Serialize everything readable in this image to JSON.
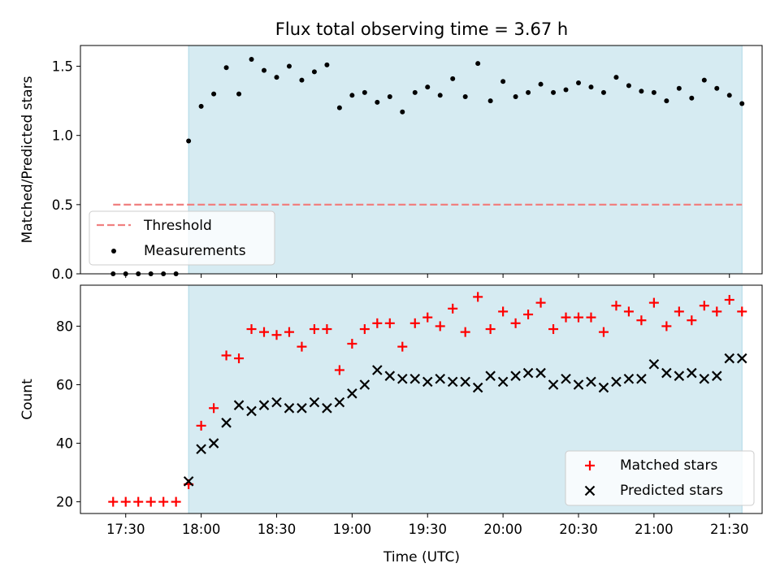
{
  "title": "Flux total observing time = 3.67 h",
  "xlabel": "Time (UTC)",
  "xticks": [
    "17:30",
    "18:00",
    "18:30",
    "19:00",
    "19:30",
    "20:00",
    "20:30",
    "21:00",
    "21:30"
  ],
  "colors": {
    "shade": "#add8e6",
    "threshold": "#f08080",
    "matched": "#ff0000",
    "predicted": "#000000"
  },
  "chart_data": [
    {
      "type": "scatter",
      "ylabel": "Matched/Predicted stars",
      "ylim": [
        0,
        1.65
      ],
      "yticks": [
        "0.0",
        "0.5",
        "1.0",
        "1.5"
      ],
      "shaded_region": [
        "17:55",
        "21:35"
      ],
      "threshold": {
        "name": "Threshold",
        "value": 0.5,
        "x_range": [
          "17:25",
          "21:35"
        ]
      },
      "legend": [
        "Threshold",
        "Measurements"
      ],
      "legend_position": "lower-left",
      "series": [
        {
          "name": "Measurements",
          "x": [
            "17:25",
            "17:30",
            "17:35",
            "17:40",
            "17:45",
            "17:50",
            "17:55",
            "18:00",
            "18:05",
            "18:10",
            "18:15",
            "18:20",
            "18:25",
            "18:30",
            "18:35",
            "18:40",
            "18:45",
            "18:50",
            "18:55",
            "19:00",
            "19:05",
            "19:10",
            "19:15",
            "19:20",
            "19:25",
            "19:30",
            "19:35",
            "19:40",
            "19:45",
            "19:50",
            "19:55",
            "20:00",
            "20:05",
            "20:10",
            "20:15",
            "20:20",
            "20:25",
            "20:30",
            "20:35",
            "20:40",
            "20:45",
            "20:50",
            "20:55",
            "21:00",
            "21:05",
            "21:10",
            "21:15",
            "21:20",
            "21:25",
            "21:30",
            "21:35"
          ],
          "values": [
            0,
            0,
            0,
            0,
            0,
            0,
            0.96,
            1.21,
            1.3,
            1.49,
            1.3,
            1.55,
            1.47,
            1.42,
            1.5,
            1.4,
            1.46,
            1.51,
            1.2,
            1.29,
            1.31,
            1.24,
            1.28,
            1.17,
            1.31,
            1.35,
            1.29,
            1.41,
            1.28,
            1.52,
            1.25,
            1.39,
            1.28,
            1.31,
            1.37,
            1.31,
            1.33,
            1.38,
            1.35,
            1.31,
            1.42,
            1.36,
            1.32,
            1.31,
            1.25,
            1.34,
            1.27,
            1.4,
            1.34,
            1.29,
            1.23
          ]
        }
      ]
    },
    {
      "type": "scatter",
      "ylabel": "Count",
      "ylim": [
        16,
        94
      ],
      "yticks": [
        "20",
        "40",
        "60",
        "80"
      ],
      "shaded_region": [
        "17:55",
        "21:35"
      ],
      "legend": [
        "Matched stars",
        "Predicted stars"
      ],
      "legend_position": "lower-right",
      "series": [
        {
          "name": "Matched stars",
          "marker": "plus",
          "x": [
            "17:25",
            "17:30",
            "17:35",
            "17:40",
            "17:45",
            "17:50",
            "17:55",
            "18:00",
            "18:05",
            "18:10",
            "18:15",
            "18:20",
            "18:25",
            "18:30",
            "18:35",
            "18:40",
            "18:45",
            "18:50",
            "18:55",
            "19:00",
            "19:05",
            "19:10",
            "19:15",
            "19:20",
            "19:25",
            "19:30",
            "19:35",
            "19:40",
            "19:45",
            "19:50",
            "19:55",
            "20:00",
            "20:05",
            "20:10",
            "20:15",
            "20:20",
            "20:25",
            "20:30",
            "20:35",
            "20:40",
            "20:45",
            "20:50",
            "20:55",
            "21:00",
            "21:05",
            "21:10",
            "21:15",
            "21:20",
            "21:25",
            "21:30",
            "21:35"
          ],
          "values": [
            20,
            20,
            20,
            20,
            20,
            20,
            26,
            46,
            52,
            70,
            69,
            79,
            78,
            77,
            78,
            73,
            79,
            79,
            65,
            74,
            79,
            81,
            81,
            73,
            81,
            83,
            80,
            86,
            78,
            90,
            79,
            85,
            81,
            84,
            88,
            79,
            83,
            83,
            83,
            78,
            87,
            85,
            82,
            88,
            80,
            85,
            82,
            87,
            85,
            89,
            85
          ]
        },
        {
          "name": "Predicted stars",
          "marker": "x",
          "x": [
            "17:55",
            "18:00",
            "18:05",
            "18:10",
            "18:15",
            "18:20",
            "18:25",
            "18:30",
            "18:35",
            "18:40",
            "18:45",
            "18:50",
            "18:55",
            "19:00",
            "19:05",
            "19:10",
            "19:15",
            "19:20",
            "19:25",
            "19:30",
            "19:35",
            "19:40",
            "19:45",
            "19:50",
            "19:55",
            "20:00",
            "20:05",
            "20:10",
            "20:15",
            "20:20",
            "20:25",
            "20:30",
            "20:35",
            "20:40",
            "20:45",
            "20:50",
            "20:55",
            "21:00",
            "21:05",
            "21:10",
            "21:15",
            "21:20",
            "21:25",
            "21:30",
            "21:35"
          ],
          "values": [
            27,
            38,
            40,
            47,
            53,
            51,
            53,
            54,
            52,
            52,
            54,
            52,
            54,
            57,
            60,
            65,
            63,
            62,
            62,
            61,
            62,
            61,
            61,
            59,
            63,
            61,
            63,
            64,
            64,
            60,
            62,
            60,
            61,
            59,
            61,
            62,
            62,
            67,
            64,
            63,
            64,
            62,
            63,
            69,
            69
          ]
        }
      ]
    }
  ]
}
